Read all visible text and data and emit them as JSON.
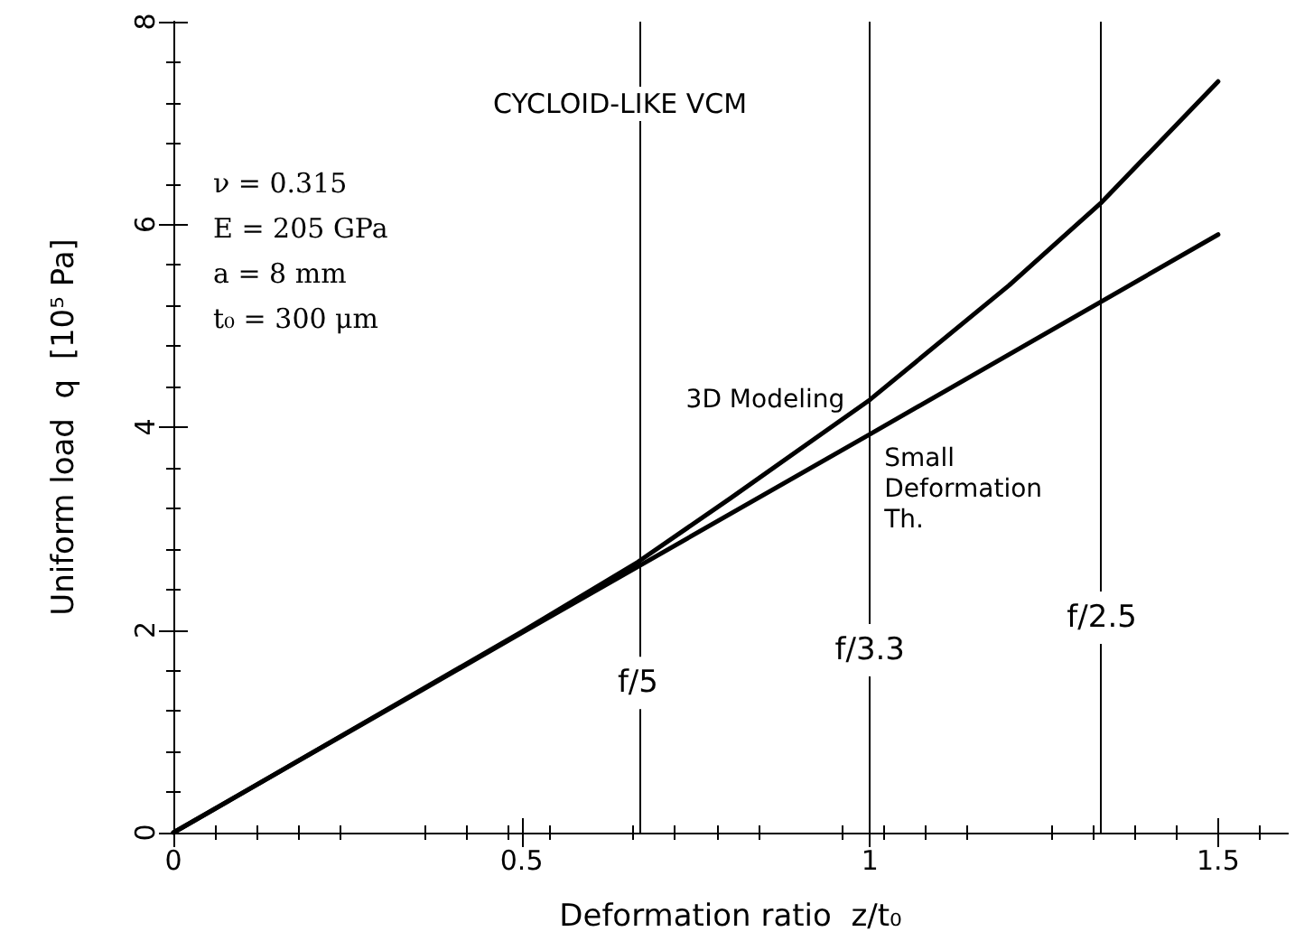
{
  "chart_data": {
    "type": "line",
    "xlabel": "Deformation ratio  z/t₀",
    "ylabel": "Uniform load  q  [10⁵ Pa]",
    "x": [
      0,
      0.25,
      0.5,
      0.667,
      0.8,
      1,
      1.2,
      1.333,
      1.5
    ],
    "series": [
      {
        "name": "3D Modeling",
        "color": "#000000",
        "values": [
          0,
          0.99,
          1.98,
          2.67,
          3.3,
          4.27,
          5.4,
          6.22,
          7.41
        ]
      },
      {
        "name": "Small Deformation Th.",
        "color": "#000000",
        "x": [
          0,
          0.5,
          1,
          1.5
        ],
        "values": [
          0,
          1.97,
          3.93,
          5.9
        ]
      }
    ],
    "xlim": [
      0,
      1.6
    ],
    "xticks": [
      0,
      0.5,
      1,
      1.5
    ],
    "ylim": [
      0,
      8
    ],
    "yticks": [
      0,
      2,
      4,
      6,
      8
    ],
    "grid": false,
    "legend": false,
    "marker": "none",
    "line_style": "solid",
    "ref_lines": [
      {
        "axis": "x",
        "value": 0.667,
        "label": "f/5"
      },
      {
        "axis": "x",
        "value": 1,
        "label": "f/3.3"
      },
      {
        "axis": "x",
        "value": 1.333,
        "label": "f/2.5"
      }
    ],
    "annotations": [
      "CYCLOID-LIKE VCM",
      "ν = 0.315",
      "E = 205 GPa",
      "a = 8 mm",
      "t₀ = 300 μm"
    ]
  }
}
